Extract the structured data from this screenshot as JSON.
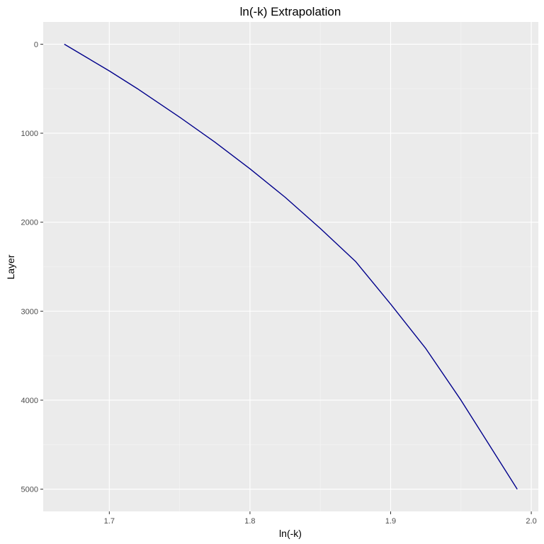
{
  "chart_data": {
    "type": "line",
    "title": "ln(-k) Extrapolation",
    "xlabel": "ln(-k)",
    "ylabel": "Layer",
    "xlim": [
      1.653,
      2.005
    ],
    "ylim": [
      0,
      5000
    ],
    "y_reversed": true,
    "grid": true,
    "x_ticks": [
      "1.7",
      "1.8",
      "1.9",
      "2.0"
    ],
    "y_ticks": [
      "0",
      "1000",
      "2000",
      "3000",
      "4000",
      "5000"
    ],
    "series": [
      {
        "color": "#00008b",
        "points": [
          [
            1.668,
            0
          ],
          [
            1.684,
            150
          ],
          [
            1.7,
            300
          ],
          [
            1.72,
            500
          ],
          [
            1.75,
            820
          ],
          [
            1.775,
            1100
          ],
          [
            1.8,
            1400
          ],
          [
            1.825,
            1720
          ],
          [
            1.85,
            2070
          ],
          [
            1.875,
            2440
          ],
          [
            1.9,
            2920
          ],
          [
            1.925,
            3420
          ],
          [
            1.95,
            4000
          ],
          [
            1.97,
            4500
          ],
          [
            1.99,
            5000
          ]
        ]
      }
    ]
  },
  "colors": {
    "panel_background": "#ebebeb",
    "grid_major": "#ffffff",
    "grid_minor": "#f5f5f5",
    "line": "#00008b"
  }
}
